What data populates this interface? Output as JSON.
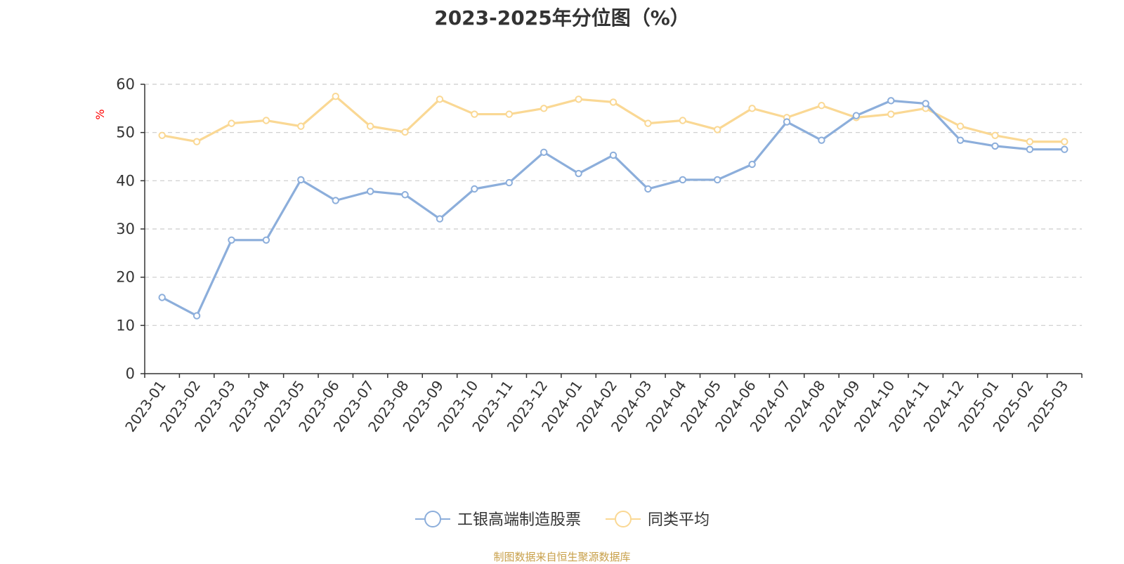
{
  "chart_data": {
    "type": "line",
    "title": "2023-2025年分位图（%）",
    "ylabel": "%",
    "ylim": [
      0,
      60
    ],
    "yticks": [
      0,
      10,
      20,
      30,
      40,
      50,
      60
    ],
    "grid": true,
    "legend_position": "bottom",
    "categories": [
      "2023-01",
      "2023-02",
      "2023-03",
      "2023-04",
      "2023-05",
      "2023-06",
      "2023-07",
      "2023-08",
      "2023-09",
      "2023-10",
      "2023-11",
      "2023-12",
      "2024-01",
      "2024-02",
      "2024-03",
      "2024-04",
      "2024-05",
      "2024-06",
      "2024-07",
      "2024-08",
      "2024-09",
      "2024-10",
      "2024-11",
      "2024-12",
      "2025-01",
      "2025-02",
      "2025-03"
    ],
    "series": [
      {
        "name": "工银高端制造股票",
        "color": "#8caedb",
        "values": [
          15.8,
          12.0,
          27.7,
          27.7,
          40.2,
          35.9,
          37.8,
          37.1,
          32.1,
          38.3,
          39.6,
          45.9,
          41.5,
          45.3,
          38.3,
          40.2,
          40.2,
          43.4,
          52.2,
          48.4,
          53.5,
          56.6,
          56.0,
          48.4,
          47.2,
          46.5,
          46.5
        ]
      },
      {
        "name": "同类平均",
        "color": "#fad894",
        "values": [
          49.4,
          48.1,
          51.9,
          52.5,
          51.3,
          57.5,
          51.3,
          50.1,
          56.9,
          53.8,
          53.8,
          55.0,
          56.9,
          56.3,
          51.9,
          52.5,
          50.6,
          55.0,
          53.1,
          55.6,
          53.1,
          53.8,
          55.0,
          51.3,
          49.4,
          48.1,
          48.1
        ]
      }
    ]
  },
  "source_text": "制图数据来自恒生聚源数据库",
  "colors": {
    "axis": "#333333",
    "grid": "#cccccc",
    "unit": "#ff0000",
    "source": "#c8a04a"
  }
}
